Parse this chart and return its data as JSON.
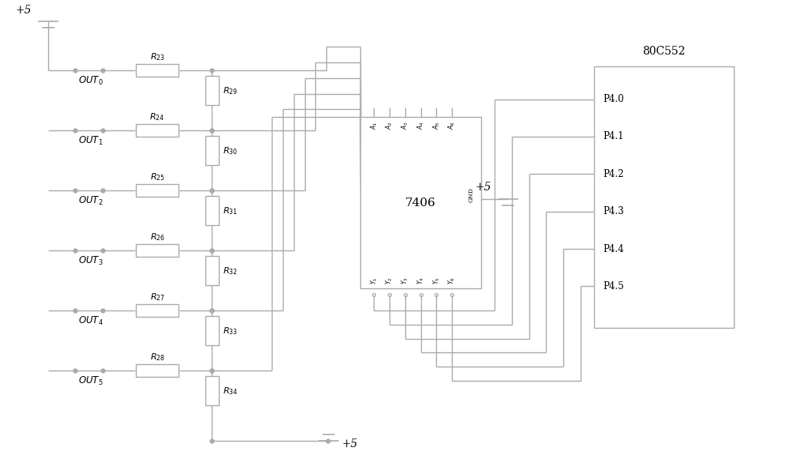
{
  "bg_color": "#ffffff",
  "line_color": "#aaaaaa",
  "lw": 1.0,
  "rows": [
    {
      "label_sub": "0",
      "rh": "23",
      "rv": "29"
    },
    {
      "label_sub": "1",
      "rh": "24",
      "rv": "30"
    },
    {
      "label_sub": "2",
      "rh": "25",
      "rv": "31"
    },
    {
      "label_sub": "3",
      "rh": "26",
      "rv": "32"
    },
    {
      "label_sub": "4",
      "rh": "27",
      "rv": "33"
    },
    {
      "label_sub": "5",
      "rh": "28",
      "rv": "34"
    }
  ],
  "p_labels": [
    "P4.0",
    "P4.1",
    "P4.2",
    "P4.3",
    "P4.4",
    "P4.5"
  ]
}
